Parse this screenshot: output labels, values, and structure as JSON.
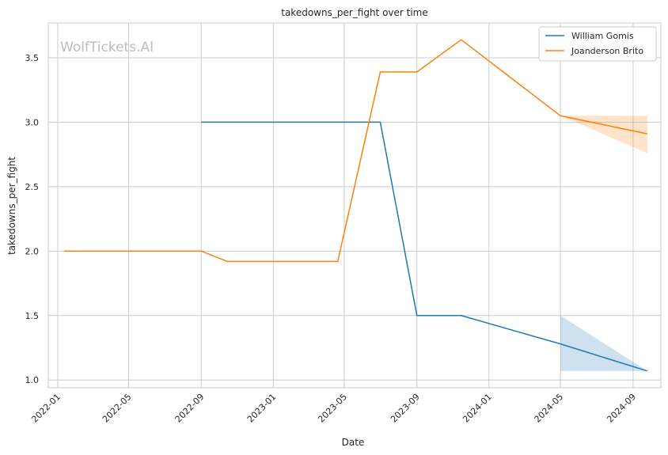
{
  "chart_data": {
    "type": "line",
    "title": "takedowns_per_fight over time",
    "xlabel": "Date",
    "ylabel": "takedowns_per_fight",
    "watermark": "WolfTickets.AI",
    "x_ticks": [
      "2022-01",
      "2022-05",
      "2022-09",
      "2023-01",
      "2023-05",
      "2023-09",
      "2024-01",
      "2024-05",
      "2024-09"
    ],
    "y_ticks": [
      "1.0",
      "1.5",
      "2.0",
      "2.5",
      "3.0",
      "3.5"
    ],
    "xlim": [
      "2021-12-16",
      "2024-10-18"
    ],
    "ylim": [
      0.94,
      3.77
    ],
    "grid": true,
    "legend_position": "top-right",
    "series": [
      {
        "name": "William Gomis",
        "color": "#1f77b4",
        "points": [
          {
            "x": "2022-09-01",
            "y": 3.0
          },
          {
            "x": "2023-07-01",
            "y": 3.0
          },
          {
            "x": "2023-09-01",
            "y": 1.5
          },
          {
            "x": "2023-11-15",
            "y": 1.5
          },
          {
            "x": "2024-05-01",
            "y": 1.28
          },
          {
            "x": "2024-09-25",
            "y": 1.07
          }
        ],
        "band": [
          {
            "x": "2024-05-01",
            "low": 1.07,
            "high": 1.5
          },
          {
            "x": "2024-09-25",
            "low": 1.07,
            "high": 1.07
          }
        ]
      },
      {
        "name": "Joanderson Brito",
        "color": "#ff7f0e",
        "points": [
          {
            "x": "2022-01-12",
            "y": 2.0
          },
          {
            "x": "2022-09-01",
            "y": 2.0
          },
          {
            "x": "2022-10-15",
            "y": 1.92
          },
          {
            "x": "2023-04-20",
            "y": 1.92
          },
          {
            "x": "2023-07-01",
            "y": 3.39
          },
          {
            "x": "2023-09-01",
            "y": 3.39
          },
          {
            "x": "2023-11-15",
            "y": 3.64
          },
          {
            "x": "2024-05-01",
            "y": 3.05
          },
          {
            "x": "2024-09-25",
            "y": 2.91
          }
        ],
        "band": [
          {
            "x": "2024-05-01",
            "low": 3.05,
            "high": 3.05
          },
          {
            "x": "2024-09-25",
            "low": 2.76,
            "high": 3.05
          }
        ]
      }
    ]
  }
}
